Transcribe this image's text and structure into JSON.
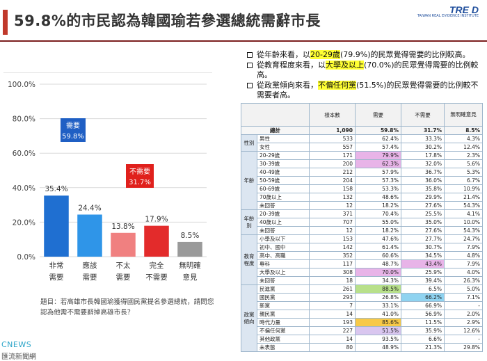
{
  "header": {
    "title": "59.8%的市民認為韓國瑜若參選總統需辭市長",
    "logo_text": "TRE D",
    "logo_sub": "TAIWAN REAL EVIDENCE INSTITUTE"
  },
  "chart_data": {
    "type": "bar",
    "categories": [
      [
        "非常",
        "需要"
      ],
      [
        "應該",
        "需要"
      ],
      [
        "不太",
        "需要"
      ],
      [
        "完全",
        "不需要"
      ],
      [
        "無明確",
        "意見"
      ]
    ],
    "values": [
      35.4,
      24.4,
      13.8,
      17.9,
      8.5
    ],
    "value_labels": [
      "35.4%",
      "24.4%",
      "13.8%",
      "17.9%",
      "8.5%"
    ],
    "colors": [
      "#1f6fd1",
      "#2f95e8",
      "#f08080",
      "#e32b2b",
      "#9a9a9a"
    ],
    "ylim": [
      0,
      100
    ],
    "yticks": [
      0,
      20,
      40,
      60,
      80,
      100
    ],
    "ytick_labels": [
      "0.0%",
      "20.0%",
      "40.0%",
      "60.0%",
      "80.0%",
      "100.0%"
    ],
    "grid": true,
    "callouts": [
      {
        "label": "需要",
        "value": "59.8%",
        "color": "#1f5fc4"
      },
      {
        "label": "不需要",
        "value": "31.7%",
        "color": "#e0201c"
      }
    ]
  },
  "question_text": "題目：若高雄市長韓國瑜獲得國民黨提名參選總統，請問您認為他需不需要辭掉高雄市長？",
  "footer": {
    "brand": "CNEWS",
    "brand_sub": "匯流新聞網"
  },
  "notes": [
    {
      "pre": "從年齡來看，以",
      "hl": "20-29歲",
      "post": "(79.9%)的民眾覺得需要的比例較高。"
    },
    {
      "pre": "從教育程度來看，以",
      "hl": "大學及以上",
      "post": "(70.0%)的民眾覺得需要的比例較高。"
    },
    {
      "pre": "從政黨傾向來看，",
      "hl": "不偏任何黨",
      "post": "(51.5%)的民眾覺得需要的比例較不需要者高。"
    }
  ],
  "table": {
    "headers": [
      "",
      "",
      "樣本數",
      "需要",
      "不需要",
      "無明確意見"
    ],
    "total": {
      "label": "總計",
      "n": "1,090",
      "need": "59.8%",
      "no": "31.7%",
      "na": "8.5%"
    },
    "groups": [
      {
        "name": "性別",
        "rows": [
          {
            "label": "男性",
            "n": "533",
            "need": "62.4%",
            "no": "33.3%",
            "na": "4.3%"
          },
          {
            "label": "女性",
            "n": "557",
            "need": "57.4%",
            "no": "30.2%",
            "na": "12.4%"
          }
        ]
      },
      {
        "name": "年齡",
        "rows": [
          {
            "label": "20-29歲",
            "n": "171",
            "need": "79.9%",
            "no": "17.8%",
            "na": "2.3%",
            "hl": "need-pink"
          },
          {
            "label": "30-39歲",
            "n": "200",
            "need": "62.3%",
            "no": "32.0%",
            "na": "5.6%",
            "hl": "need-pink"
          },
          {
            "label": "40-49歲",
            "n": "212",
            "need": "57.9%",
            "no": "36.7%",
            "na": "5.3%"
          },
          {
            "label": "50-59歲",
            "n": "204",
            "need": "57.3%",
            "no": "36.0%",
            "na": "6.7%"
          },
          {
            "label": "60-69歲",
            "n": "158",
            "need": "53.3%",
            "no": "35.8%",
            "na": "10.9%"
          },
          {
            "label": "70歲以上",
            "n": "132",
            "need": "48.6%",
            "no": "29.9%",
            "na": "21.4%"
          },
          {
            "label": "未回答",
            "n": "12",
            "need": "18.2%",
            "no": "27.6%",
            "na": "54.3%"
          }
        ]
      },
      {
        "name": "年齡別",
        "rows": [
          {
            "label": "20-39歲",
            "n": "371",
            "need": "70.4%",
            "no": "25.5%",
            "na": "4.1%"
          },
          {
            "label": "40歲以上",
            "n": "707",
            "need": "55.0%",
            "no": "35.0%",
            "na": "10.0%"
          },
          {
            "label": "未回答",
            "n": "12",
            "need": "18.2%",
            "no": "27.6%",
            "na": "54.3%"
          }
        ]
      },
      {
        "name": "教育程度",
        "rows": [
          {
            "label": "小學及以下",
            "n": "153",
            "need": "47.6%",
            "no": "27.7%",
            "na": "24.7%"
          },
          {
            "label": "初中、國中",
            "n": "142",
            "need": "61.4%",
            "no": "30.7%",
            "na": "7.9%"
          },
          {
            "label": "高中、高職",
            "n": "352",
            "need": "60.6%",
            "no": "34.5%",
            "na": "4.8%"
          },
          {
            "label": "專科",
            "n": "117",
            "need": "48.7%",
            "no": "43.4%",
            "na": "7.9%",
            "hl": "no-pink"
          },
          {
            "label": "大學及以上",
            "n": "308",
            "need": "70.0%",
            "no": "25.9%",
            "na": "4.0%",
            "hl": "need-pink"
          },
          {
            "label": "未回答",
            "n": "18",
            "need": "34.3%",
            "no": "39.4%",
            "na": "26.3%"
          }
        ]
      },
      {
        "name": "政黨傾向",
        "rows": [
          {
            "label": "民進黨",
            "n": "261",
            "need": "88.5%",
            "no": "6.5%",
            "na": "5.0%",
            "hl": "need-green"
          },
          {
            "label": "國民黨",
            "n": "293",
            "need": "26.8%",
            "no": "66.2%",
            "na": "7.1%",
            "hl": "no-blue"
          },
          {
            "label": "新黨",
            "n": "7",
            "need": "33.1%",
            "no": "66.9%",
            "na": "-"
          },
          {
            "label": "親民黨",
            "n": "14",
            "need": "41.0%",
            "no": "56.9%",
            "na": "2.0%"
          },
          {
            "label": "時代力量",
            "n": "193",
            "need": "85.6%",
            "no": "11.5%",
            "na": "2.9%",
            "hl": "need-orange"
          },
          {
            "label": "不偏任何黨",
            "n": "227",
            "need": "51.5%",
            "no": "35.9%",
            "na": "12.6%",
            "hl": "need-lav"
          },
          {
            "label": "其他政黨",
            "n": "14",
            "need": "93.5%",
            "no": "6.6%",
            "na": "-"
          },
          {
            "label": "未表態",
            "n": "80",
            "need": "48.9%",
            "no": "21.3%",
            "na": "29.8%"
          }
        ]
      }
    ]
  }
}
